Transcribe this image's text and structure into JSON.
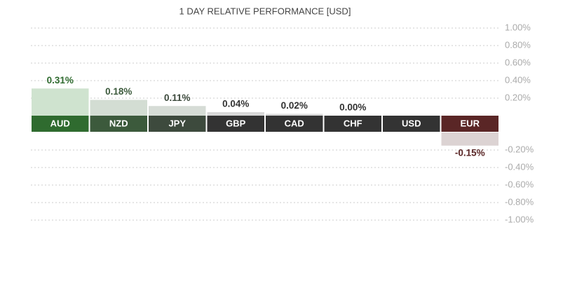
{
  "chart_data": {
    "type": "bar",
    "title": "1 DAY RELATIVE PERFORMANCE  [USD]",
    "categories": [
      "AUD",
      "NZD",
      "JPY",
      "GBP",
      "CAD",
      "CHF",
      "USD",
      "EUR"
    ],
    "values": [
      0.31,
      0.18,
      0.11,
      0.04,
      0.02,
      0.0,
      0,
      -0.15
    ],
    "value_labels": [
      "0.31%",
      "0.18%",
      "0.11%",
      "0.04%",
      "0.02%",
      "0.00%",
      null,
      "-0.15%"
    ],
    "bar_colors": [
      "#cfe3cf",
      "#d3ddd3",
      "#d6dcd6",
      "#d8d8d8",
      "#d8d8d8",
      "#d8d8d8",
      "#d8d8d8",
      "#dcd3d3"
    ],
    "band_colors": [
      "#2f6b2f",
      "#3c5a3c",
      "#3d4a3d",
      "#333333",
      "#333333",
      "#333333",
      "#333333",
      "#5a2626"
    ],
    "label_colors": [
      "#2f6b2f",
      "#3c5a3c",
      "#3d4a3d",
      "#333333",
      "#333333",
      "#333333",
      "#333333",
      "#5a2626"
    ],
    "ylim": [
      -1.0,
      1.0
    ],
    "yticks": [
      {
        "value": 1.0,
        "label": "1.00%"
      },
      {
        "value": 0.8,
        "label": "0.80%"
      },
      {
        "value": 0.6,
        "label": "0.60%"
      },
      {
        "value": 0.4,
        "label": "0.40%"
      },
      {
        "value": 0.2,
        "label": "0.20%"
      },
      {
        "value": -0.2,
        "label": "-0.20%"
      },
      {
        "value": -0.4,
        "label": "-0.40%"
      },
      {
        "value": -0.6,
        "label": "-0.60%"
      },
      {
        "value": -0.8,
        "label": "-0.80%"
      },
      {
        "value": -1.0,
        "label": "-1.00%"
      }
    ],
    "grid": true
  }
}
